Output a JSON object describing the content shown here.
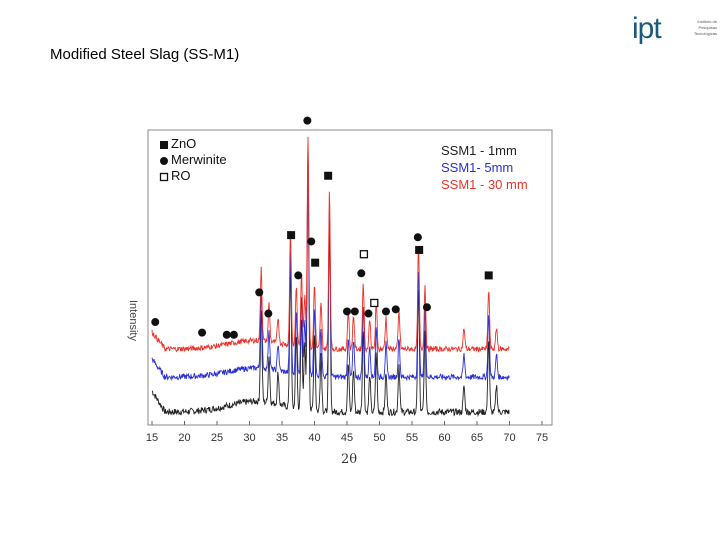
{
  "slide": {
    "title": "Modified Steel Slag (SS-M1)"
  },
  "logo": {
    "mark": "ipt",
    "tagline": [
      "Instituto de",
      "Pesquisas",
      "Tecnológicas"
    ]
  },
  "colors": {
    "red": "#e8332a",
    "blue": "#2b2fd6",
    "black": "#222222"
  },
  "chart_data": {
    "type": "line",
    "xlabel": "2θ",
    "ylabel": "Intensity",
    "xlim": [
      15,
      75
    ],
    "xticks": [
      15,
      20,
      25,
      30,
      35,
      40,
      45,
      50,
      55,
      60,
      65,
      70,
      75
    ],
    "legend_phases": [
      {
        "marker": "square",
        "name": "ZnO"
      },
      {
        "marker": "circle",
        "name": "Merwinite"
      },
      {
        "marker": "open-square",
        "name": "RO"
      }
    ],
    "series": [
      {
        "name": "SSM1 - 1mm",
        "color": "#222222",
        "offset": 0
      },
      {
        "name": "SSM1-  5mm",
        "color": "#2b2fd6",
        "offset": 1
      },
      {
        "name": "SSM1 - 30 mm",
        "color": "#e8332a",
        "offset": 2
      }
    ],
    "peaks": [
      {
        "x": 31.8,
        "h": 0.35
      },
      {
        "x": 33.0,
        "h": 0.18
      },
      {
        "x": 34.4,
        "h": 0.12
      },
      {
        "x": 36.3,
        "h": 0.55
      },
      {
        "x": 37.2,
        "h": 0.28
      },
      {
        "x": 38.0,
        "h": 0.35
      },
      {
        "x": 38.5,
        "h": 0.25
      },
      {
        "x": 39.0,
        "h": 1.0
      },
      {
        "x": 40.0,
        "h": 0.3
      },
      {
        "x": 41.0,
        "h": 0.22
      },
      {
        "x": 42.3,
        "h": 0.75
      },
      {
        "x": 45.2,
        "h": 0.18
      },
      {
        "x": 46.0,
        "h": 0.16
      },
      {
        "x": 47.5,
        "h": 0.32
      },
      {
        "x": 48.5,
        "h": 0.14
      },
      {
        "x": 49.5,
        "h": 0.22
      },
      {
        "x": 51.0,
        "h": 0.15
      },
      {
        "x": 53.0,
        "h": 0.18
      },
      {
        "x": 56.0,
        "h": 0.48
      },
      {
        "x": 57.0,
        "h": 0.3
      },
      {
        "x": 63.0,
        "h": 0.1
      },
      {
        "x": 66.8,
        "h": 0.28
      },
      {
        "x": 68.0,
        "h": 0.1
      }
    ],
    "markers": [
      {
        "x": 15.5,
        "shape": "circle",
        "level": 0.08
      },
      {
        "x": 22.7,
        "shape": "circle",
        "level": 0.03
      },
      {
        "x": 26.5,
        "shape": "circle",
        "level": 0.02
      },
      {
        "x": 27.6,
        "shape": "circle",
        "level": 0.02
      },
      {
        "x": 31.5,
        "shape": "circle",
        "level": 0.22
      },
      {
        "x": 32.9,
        "shape": "circle",
        "level": 0.12
      },
      {
        "x": 36.4,
        "shape": "square",
        "level": 0.49
      },
      {
        "x": 37.5,
        "shape": "circle",
        "level": 0.3
      },
      {
        "x": 38.9,
        "shape": "circle",
        "level": 1.03
      },
      {
        "x": 39.5,
        "shape": "circle",
        "level": 0.46
      },
      {
        "x": 40.1,
        "shape": "square",
        "level": 0.36
      },
      {
        "x": 42.1,
        "shape": "square",
        "level": 0.77
      },
      {
        "x": 45.0,
        "shape": "circle",
        "level": 0.13
      },
      {
        "x": 46.2,
        "shape": "circle",
        "level": 0.13
      },
      {
        "x": 47.2,
        "shape": "circle",
        "level": 0.31
      },
      {
        "x": 47.6,
        "shape": "open-square",
        "level": 0.4
      },
      {
        "x": 48.3,
        "shape": "circle",
        "level": 0.12
      },
      {
        "x": 49.2,
        "shape": "open-square",
        "level": 0.17
      },
      {
        "x": 51.0,
        "shape": "circle",
        "level": 0.13
      },
      {
        "x": 52.5,
        "shape": "circle",
        "level": 0.14
      },
      {
        "x": 55.9,
        "shape": "circle",
        "level": 0.48
      },
      {
        "x": 56.1,
        "shape": "square",
        "level": 0.42
      },
      {
        "x": 57.3,
        "shape": "circle",
        "level": 0.15
      },
      {
        "x": 66.8,
        "shape": "square",
        "level": 0.3
      }
    ]
  }
}
